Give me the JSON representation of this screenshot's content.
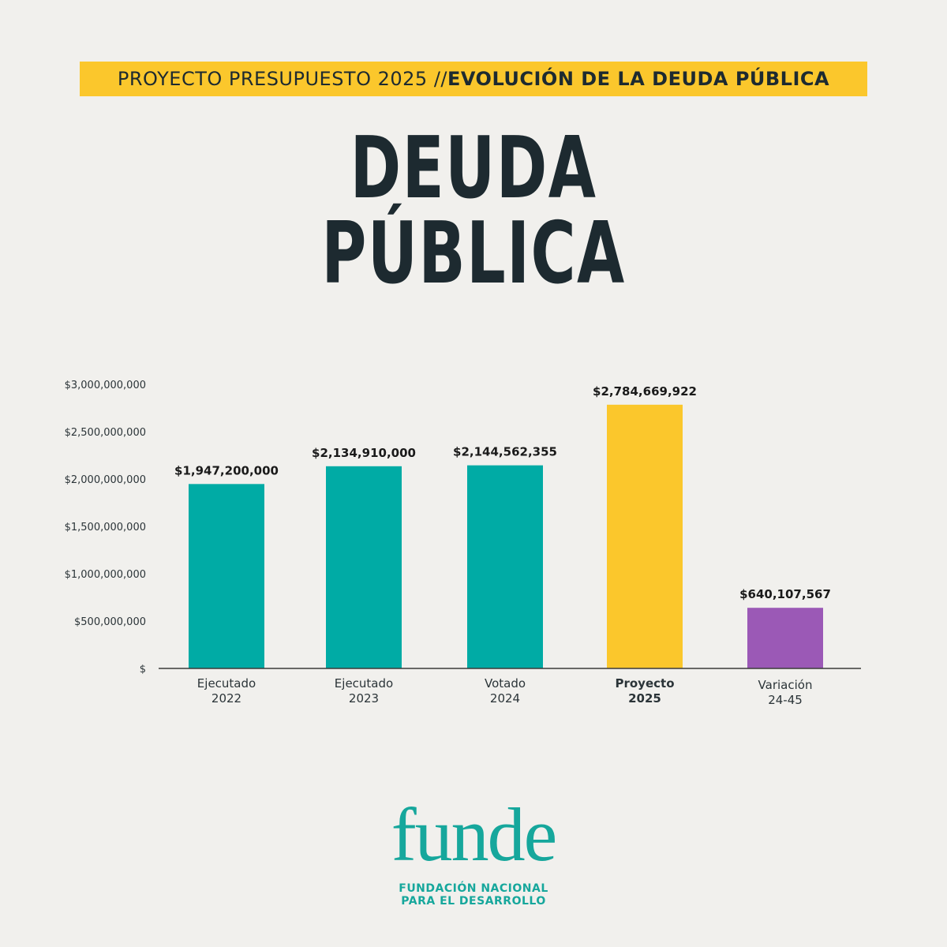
{
  "header": {
    "banner_light": "PROYECTO PRESUPUESTO 2025 // ",
    "banner_bold": "EVOLUCIÓN DE LA DEUDA PÚBLICA",
    "title_line1": "DEUDA",
    "title_line2": "PÚBLICA"
  },
  "chart_data": {
    "type": "bar",
    "categories": [
      [
        "Ejecutado",
        "2022"
      ],
      [
        "Ejecutado",
        "2023"
      ],
      [
        "Votado",
        "2024"
      ],
      [
        "Proyecto",
        "2025"
      ],
      [
        "Variación",
        "24-45"
      ]
    ],
    "values": [
      1947200000,
      2134910000,
      2144562355,
      2784669922,
      640107567
    ],
    "value_labels": [
      "$1,947,200,000",
      "$2,134,910,000",
      "$2,144,562,355",
      "$2,784,669,922",
      "$640,107,567"
    ],
    "bar_colors": [
      "#00aba5",
      "#00aba5",
      "#00aba5",
      "#fbc72c",
      "#9b59b6"
    ],
    "bold_category_index": 3,
    "yticks": [
      0,
      500000000,
      1000000000,
      1500000000,
      2000000000,
      2500000000,
      3000000000
    ],
    "ytick_labels": [
      "$",
      "$500,000,000",
      "$1,000,000,000",
      "$1,500,000,000",
      "$2,000,000,000",
      "$2,500,000,000",
      "$3,000,000,000"
    ],
    "ylim": [
      0,
      3000000000
    ],
    "grid": false,
    "xlabel": "",
    "ylabel": ""
  },
  "logo": {
    "word": "funde",
    "line1": "FUNDACIÓN NACIONAL",
    "line2": "PARA EL DESARROLLO"
  },
  "colors": {
    "background": "#f1f0ed",
    "banner": "#fbc72c",
    "title_text": "#1d2a30",
    "brand": "#16a79c"
  }
}
